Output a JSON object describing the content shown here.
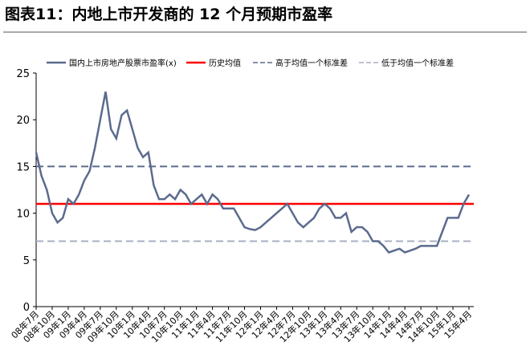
{
  "chart_data": {
    "type": "line",
    "title": "图表11：内地上市开发商的 12 个月预期市盈率",
    "categories": [
      "08年7月",
      null,
      null,
      "08年10月",
      null,
      null,
      "09年1月",
      null,
      null,
      "09年4月",
      null,
      null,
      "09年7月",
      null,
      null,
      "09年10月",
      null,
      null,
      "10年1月",
      null,
      null,
      "10年4月",
      null,
      null,
      "10年7月",
      null,
      null,
      "10年10月",
      null,
      null,
      "11年1月",
      null,
      null,
      "11年4月",
      null,
      null,
      "11年7月",
      null,
      null,
      "11年10月",
      null,
      null,
      "12年1月",
      null,
      null,
      "12年4月",
      null,
      null,
      "12年7月",
      null,
      null,
      "12年10月",
      null,
      null,
      "13年1月",
      null,
      null,
      "13年4月",
      null,
      null,
      "13年7月",
      null,
      null,
      "13年10月",
      null,
      null,
      "14年1月",
      null,
      null,
      "14年4月",
      null,
      null,
      "14年7月",
      null,
      null,
      "14年10月",
      null,
      null,
      "15年1月",
      null,
      null,
      "15年4月"
    ],
    "series": [
      {
        "name": "国内上市房地产股票市盈率(x)",
        "color": "#5b6b8e",
        "values": [
          16.5,
          14,
          12.5,
          10,
          9,
          9.5,
          11.5,
          11,
          12,
          13.5,
          14.5,
          17,
          20,
          23,
          19,
          18,
          20.5,
          21,
          19,
          17,
          16,
          16.5,
          13,
          11.5,
          11.5,
          12,
          11.5,
          12.5,
          12,
          11,
          11.5,
          12,
          11,
          12,
          11.5,
          10.5,
          10.5,
          10.5,
          9.5,
          8.5,
          8.3,
          8.2,
          8.5,
          9,
          9.5,
          10,
          10.5,
          11,
          10,
          9,
          8.5,
          9,
          9.5,
          10.5,
          11,
          10.5,
          9.5,
          9.5,
          10,
          8,
          8.5,
          8.5,
          8,
          7,
          7,
          6.5,
          5.8,
          6,
          6.2,
          5.8,
          6,
          6.2,
          6.5,
          6.5,
          6.5,
          6.5,
          8,
          9.5,
          9.5,
          9.5,
          11,
          12
        ]
      }
    ],
    "reference_lines": [
      {
        "name": "历史均值",
        "value": 11,
        "color": "#ff0000",
        "dash": false
      },
      {
        "name": "高于均值一个标准差",
        "value": 15,
        "color": "#5b6b8e",
        "dash": true
      },
      {
        "name": "低于均值一个标准差",
        "value": 7,
        "color": "#a9afc2",
        "dash": true
      }
    ],
    "ylim": [
      0,
      25
    ],
    "yticks": [
      0,
      5,
      10,
      15,
      20,
      25
    ],
    "grid": false
  }
}
